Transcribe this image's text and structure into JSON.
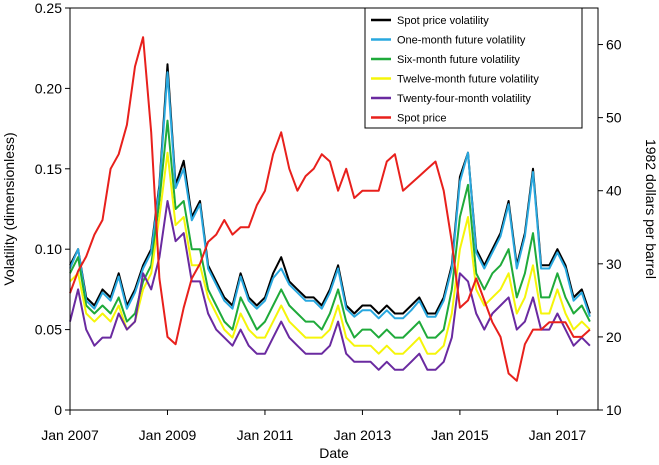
{
  "chart_data": {
    "type": "line",
    "xlabel": "Date",
    "ylabel": "Volatility (dimensionless)",
    "y2label": "1982 dollars per barrel",
    "x": [
      "2007-01",
      "2007-03",
      "2007-05",
      "2007-07",
      "2007-09",
      "2007-11",
      "2008-01",
      "2008-03",
      "2008-05",
      "2008-07",
      "2008-09",
      "2008-11",
      "2009-01",
      "2009-03",
      "2009-05",
      "2009-07",
      "2009-09",
      "2009-11",
      "2010-01",
      "2010-03",
      "2010-05",
      "2010-07",
      "2010-09",
      "2010-11",
      "2011-01",
      "2011-03",
      "2011-05",
      "2011-07",
      "2011-09",
      "2011-11",
      "2012-01",
      "2012-03",
      "2012-05",
      "2012-07",
      "2012-09",
      "2012-11",
      "2013-01",
      "2013-03",
      "2013-05",
      "2013-07",
      "2013-09",
      "2013-11",
      "2014-01",
      "2014-03",
      "2014-05",
      "2014-07",
      "2014-09",
      "2014-11",
      "2015-01",
      "2015-03",
      "2015-05",
      "2015-07",
      "2015-09",
      "2015-11",
      "2016-01",
      "2016-03",
      "2016-05",
      "2016-07",
      "2016-09",
      "2016-11",
      "2017-01",
      "2017-03",
      "2017-05",
      "2017-07",
      "2017-09"
    ],
    "xlim": [
      "2007-01",
      "2017-11"
    ],
    "xticks": [
      {
        "value": "2007-01",
        "label": "Jan 2007"
      },
      {
        "value": "2009-01",
        "label": "Jan 2009"
      },
      {
        "value": "2011-01",
        "label": "Jan 2011"
      },
      {
        "value": "2013-01",
        "label": "Jan 2013"
      },
      {
        "value": "2015-01",
        "label": "Jan 2015"
      },
      {
        "value": "2017-01",
        "label": "Jan 2017"
      }
    ],
    "ylim": [
      0,
      0.25
    ],
    "yticks": [
      0,
      0.05,
      {
        "value": 0.1,
        "label": "0.10"
      },
      0.15,
      {
        "value": 0.2,
        "label": "0.20"
      },
      0.25
    ],
    "y2lim": [
      10,
      65
    ],
    "y2ticks": [
      10,
      20,
      30,
      40,
      50,
      60
    ],
    "legend": "upper right",
    "series": [
      {
        "name": "Spot price volatility",
        "color": "#000000",
        "values": [
          0.09,
          0.1,
          0.07,
          0.065,
          0.075,
          0.07,
          0.085,
          0.065,
          0.075,
          0.09,
          0.1,
          0.14,
          0.215,
          0.14,
          0.155,
          0.12,
          0.13,
          0.09,
          0.08,
          0.07,
          0.065,
          0.085,
          0.07,
          0.065,
          0.07,
          0.085,
          0.095,
          0.08,
          0.075,
          0.07,
          0.07,
          0.065,
          0.075,
          0.09,
          0.065,
          0.06,
          0.065,
          0.065,
          0.06,
          0.065,
          0.06,
          0.06,
          0.065,
          0.07,
          0.06,
          0.06,
          0.07,
          0.09,
          0.145,
          0.16,
          0.1,
          0.09,
          0.1,
          0.11,
          0.13,
          0.09,
          0.11,
          0.15,
          0.09,
          0.09,
          0.1,
          0.09,
          0.07,
          0.075,
          0.06
        ]
      },
      {
        "name": "One-month future volatility",
        "color": "#29a8df",
        "values": [
          0.088,
          0.1,
          0.068,
          0.063,
          0.073,
          0.068,
          0.083,
          0.063,
          0.073,
          0.088,
          0.098,
          0.138,
          0.21,
          0.138,
          0.15,
          0.118,
          0.128,
          0.088,
          0.078,
          0.068,
          0.063,
          0.083,
          0.068,
          0.063,
          0.068,
          0.082,
          0.088,
          0.078,
          0.073,
          0.068,
          0.068,
          0.063,
          0.073,
          0.088,
          0.063,
          0.058,
          0.062,
          0.062,
          0.057,
          0.062,
          0.057,
          0.057,
          0.062,
          0.068,
          0.058,
          0.058,
          0.068,
          0.088,
          0.142,
          0.16,
          0.098,
          0.088,
          0.098,
          0.108,
          0.128,
          0.088,
          0.108,
          0.148,
          0.088,
          0.088,
          0.098,
          0.088,
          0.068,
          0.073,
          0.058
        ]
      },
      {
        "name": "Six-month future volatility",
        "color": "#1faa3a",
        "values": [
          0.085,
          0.095,
          0.065,
          0.06,
          0.065,
          0.06,
          0.07,
          0.055,
          0.06,
          0.08,
          0.09,
          0.13,
          0.18,
          0.125,
          0.13,
          0.1,
          0.1,
          0.075,
          0.065,
          0.055,
          0.05,
          0.07,
          0.06,
          0.05,
          0.055,
          0.065,
          0.075,
          0.065,
          0.06,
          0.055,
          0.055,
          0.05,
          0.06,
          0.075,
          0.055,
          0.045,
          0.05,
          0.05,
          0.045,
          0.05,
          0.045,
          0.045,
          0.05,
          0.055,
          0.045,
          0.045,
          0.05,
          0.075,
          0.12,
          0.14,
          0.085,
          0.075,
          0.085,
          0.09,
          0.1,
          0.07,
          0.085,
          0.11,
          0.07,
          0.07,
          0.085,
          0.07,
          0.06,
          0.065,
          0.055
        ]
      },
      {
        "name": "Twelve-month future volatility",
        "color": "#f5f50a",
        "values": [
          0.08,
          0.085,
          0.06,
          0.055,
          0.06,
          0.055,
          0.065,
          0.05,
          0.055,
          0.075,
          0.085,
          0.12,
          0.16,
          0.115,
          0.12,
          0.09,
          0.09,
          0.07,
          0.06,
          0.05,
          0.045,
          0.06,
          0.05,
          0.045,
          0.045,
          0.055,
          0.065,
          0.055,
          0.05,
          0.045,
          0.045,
          0.045,
          0.05,
          0.065,
          0.045,
          0.04,
          0.04,
          0.04,
          0.035,
          0.04,
          0.035,
          0.035,
          0.04,
          0.045,
          0.035,
          0.035,
          0.04,
          0.06,
          0.1,
          0.12,
          0.075,
          0.065,
          0.07,
          0.075,
          0.085,
          0.06,
          0.07,
          0.09,
          0.06,
          0.06,
          0.075,
          0.06,
          0.05,
          0.055,
          0.05
        ]
      },
      {
        "name": "Twenty-four-month volatility",
        "color": "#6a2aa0",
        "values": [
          0.055,
          0.075,
          0.05,
          0.04,
          0.045,
          0.045,
          0.06,
          0.05,
          0.055,
          0.085,
          0.075,
          0.095,
          0.13,
          0.105,
          0.11,
          0.08,
          0.08,
          0.06,
          0.05,
          0.045,
          0.04,
          0.05,
          0.04,
          0.035,
          0.035,
          0.045,
          0.055,
          0.045,
          0.04,
          0.035,
          0.035,
          0.035,
          0.04,
          0.055,
          0.035,
          0.03,
          0.03,
          0.03,
          0.025,
          0.03,
          0.025,
          0.025,
          0.03,
          0.035,
          0.025,
          0.025,
          0.03,
          0.045,
          0.085,
          0.08,
          0.06,
          0.05,
          0.06,
          0.065,
          0.07,
          0.05,
          0.055,
          0.07,
          0.05,
          0.05,
          0.06,
          0.05,
          0.04,
          0.045,
          0.04
        ]
      },
      {
        "name": "Spot price",
        "color": "#e8201c",
        "axis": "y2",
        "values": [
          26,
          29,
          31,
          34,
          36,
          43,
          45,
          49,
          57,
          61,
          48,
          28,
          20,
          19,
          24,
          28,
          30,
          33,
          34,
          36,
          34,
          35,
          35,
          38,
          40,
          45,
          48,
          43,
          40,
          42,
          43,
          45,
          44,
          40,
          43,
          39,
          40,
          40,
          40,
          44,
          45,
          40,
          41,
          42,
          43,
          44,
          40,
          33,
          24,
          25,
          28,
          25,
          22,
          20,
          15,
          14,
          19,
          21,
          21,
          22,
          22,
          22,
          20,
          20,
          21
        ]
      }
    ]
  }
}
